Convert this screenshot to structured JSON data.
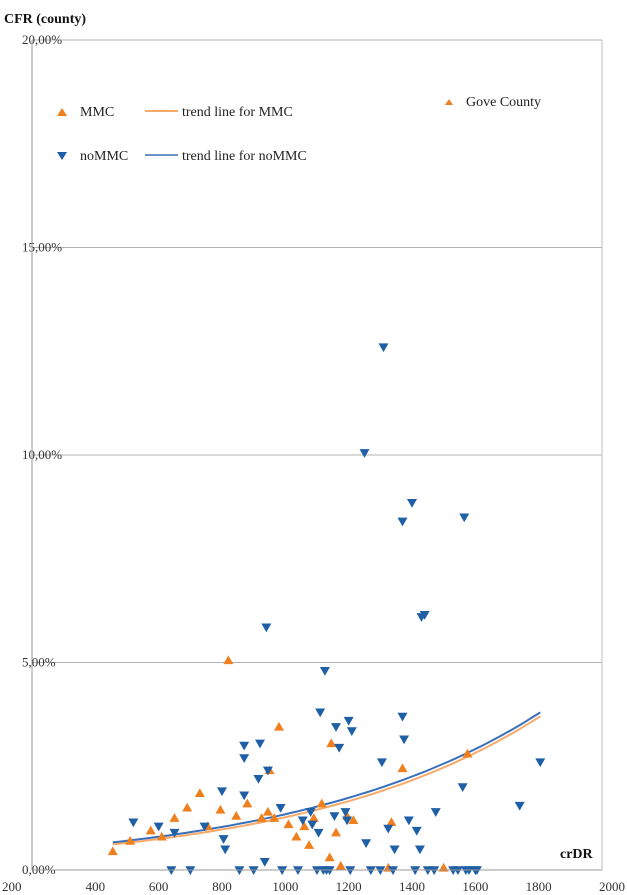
{
  "chart_data": {
    "type": "scatter",
    "ylabel": "CFR (county)",
    "xlabel": "crDR",
    "xlim": [
      200,
      2000
    ],
    "ylim": [
      0,
      20
    ],
    "x_ticks": [
      200,
      400,
      600,
      800,
      1000,
      1200,
      1400,
      1600,
      1800,
      2000
    ],
    "y_ticks": [
      {
        "value": 0,
        "label": "0,00%"
      },
      {
        "value": 5,
        "label": "5,00%"
      },
      {
        "value": 10,
        "label": "10,00%"
      },
      {
        "value": 15,
        "label": "15,00%"
      },
      {
        "value": 20,
        "label": "20,00%"
      }
    ],
    "grid": "horizontal",
    "legend": [
      {
        "marker": "triangle-up",
        "label": "MMC",
        "line_label": "trend line for MMC"
      },
      {
        "marker": "triangle-down",
        "label": "noMMC",
        "line_label": "trend line for noMMC"
      }
    ],
    "legend_placement": "top-left",
    "annotation": {
      "marker": "triangle-up-small",
      "label": "Gove County",
      "placement": "top-right"
    },
    "series": [
      {
        "name": "MMC",
        "color": "#f07f1e",
        "marker": "triangle-up",
        "points": [
          [
            455,
            0.45
          ],
          [
            510,
            0.7
          ],
          [
            575,
            0.95
          ],
          [
            610,
            0.8
          ],
          [
            650,
            1.25
          ],
          [
            690,
            1.5
          ],
          [
            730,
            1.85
          ],
          [
            755,
            1.05
          ],
          [
            795,
            1.45
          ],
          [
            820,
            5.05
          ],
          [
            845,
            1.3
          ],
          [
            880,
            1.6
          ],
          [
            925,
            1.25
          ],
          [
            945,
            1.4
          ],
          [
            950,
            2.4
          ],
          [
            965,
            1.25
          ],
          [
            980,
            3.45
          ],
          [
            1010,
            1.1
          ],
          [
            1035,
            0.8
          ],
          [
            1060,
            1.05
          ],
          [
            1075,
            0.6
          ],
          [
            1090,
            1.25
          ],
          [
            1115,
            1.6
          ],
          [
            1140,
            0.3
          ],
          [
            1145,
            3.05
          ],
          [
            1160,
            0.9
          ],
          [
            1175,
            0.1
          ],
          [
            1195,
            1.3
          ],
          [
            1215,
            1.2
          ],
          [
            1325,
            0.05
          ],
          [
            1335,
            1.15
          ],
          [
            1370,
            2.45
          ],
          [
            1500,
            0.05
          ],
          [
            1575,
            2.8
          ]
        ]
      },
      {
        "name": "noMMC",
        "color": "#1f5fa6",
        "marker": "triangle-down",
        "points": [
          [
            520,
            1.15
          ],
          [
            600,
            1.05
          ],
          [
            640,
            0.0
          ],
          [
            650,
            0.9
          ],
          [
            700,
            0.0
          ],
          [
            745,
            1.05
          ],
          [
            800,
            1.9
          ],
          [
            805,
            0.75
          ],
          [
            810,
            0.5
          ],
          [
            855,
            0.0
          ],
          [
            870,
            3.0
          ],
          [
            870,
            2.7
          ],
          [
            870,
            1.8
          ],
          [
            900,
            0.0
          ],
          [
            915,
            2.2
          ],
          [
            920,
            3.05
          ],
          [
            935,
            0.2
          ],
          [
            940,
            5.85
          ],
          [
            945,
            2.4
          ],
          [
            985,
            1.5
          ],
          [
            990,
            0.0
          ],
          [
            1040,
            0.0
          ],
          [
            1055,
            1.2
          ],
          [
            1080,
            1.4
          ],
          [
            1085,
            1.1
          ],
          [
            1100,
            0.0
          ],
          [
            1105,
            0.9
          ],
          [
            1110,
            3.8
          ],
          [
            1120,
            0.0
          ],
          [
            1125,
            4.8
          ],
          [
            1130,
            0.0
          ],
          [
            1140,
            0.0
          ],
          [
            1155,
            1.3
          ],
          [
            1160,
            3.45
          ],
          [
            1170,
            2.95
          ],
          [
            1190,
            1.4
          ],
          [
            1195,
            1.2
          ],
          [
            1200,
            3.6
          ],
          [
            1205,
            0.0
          ],
          [
            1210,
            3.35
          ],
          [
            1250,
            10.05
          ],
          [
            1255,
            0.65
          ],
          [
            1270,
            0.0
          ],
          [
            1300,
            0.0
          ],
          [
            1305,
            2.6
          ],
          [
            1310,
            12.6
          ],
          [
            1325,
            1.0
          ],
          [
            1340,
            0.0
          ],
          [
            1345,
            0.5
          ],
          [
            1370,
            3.7
          ],
          [
            1370,
            8.4
          ],
          [
            1375,
            3.15
          ],
          [
            1390,
            1.2
          ],
          [
            1400,
            8.85
          ],
          [
            1410,
            0.0
          ],
          [
            1415,
            0.95
          ],
          [
            1425,
            0.5
          ],
          [
            1430,
            6.1
          ],
          [
            1440,
            6.15
          ],
          [
            1450,
            0.0
          ],
          [
            1470,
            0.0
          ],
          [
            1475,
            1.4
          ],
          [
            1530,
            0.0
          ],
          [
            1545,
            0.0
          ],
          [
            1560,
            2.0
          ],
          [
            1565,
            8.5
          ],
          [
            1570,
            0.0
          ],
          [
            1580,
            0.0
          ],
          [
            1600,
            0.0
          ],
          [
            1605,
            0.0
          ],
          [
            1740,
            1.55
          ],
          [
            1805,
            2.6
          ]
        ]
      }
    ],
    "trend_lines": [
      {
        "name": "trend line for MMC",
        "color": "#f7a96a",
        "type": "exponential",
        "x_range": [
          455,
          1805
        ],
        "a": 0.337,
        "b": 0.001328
      },
      {
        "name": "trend line for noMMC",
        "color": "#3a6fba",
        "type": "exponential",
        "x_range": [
          455,
          1805
        ],
        "a": 0.37,
        "b": 0.00129
      }
    ]
  }
}
